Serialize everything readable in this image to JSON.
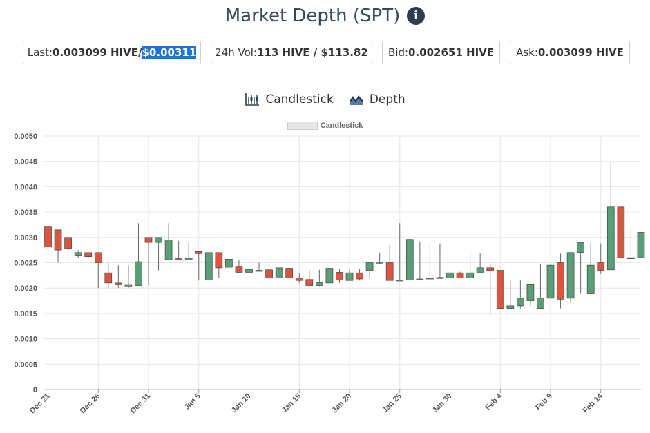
{
  "page": {
    "title": "Market Depth (SPT)",
    "info_icon": "info-icon"
  },
  "stats": {
    "last": {
      "label": "Last: ",
      "hive": "0.003099 HIVE",
      "sep": " / ",
      "usd": "$0.00311"
    },
    "vol": {
      "label": "24h Vol: ",
      "value": "113 HIVE / $113.82"
    },
    "bid": {
      "label": "Bid: ",
      "value": "0.002651 HIVE"
    },
    "ask": {
      "label": "Ask: ",
      "value": "0.003099 HIVE"
    }
  },
  "tabs": [
    {
      "label": "Candlestick",
      "icon": "candlestick-chart-icon"
    },
    {
      "label": "Depth",
      "icon": "depth-chart-icon"
    }
  ],
  "colors": {
    "up": "#5a9e78",
    "down": "#d9553f",
    "title": "#34495e",
    "grid": "#e6e6e6",
    "wick": "#666666"
  },
  "chart_data": {
    "type": "candlestick",
    "legend": "Candlestick",
    "grid": true,
    "ylim": [
      0,
      0.005
    ],
    "y_ticks": [
      "0",
      "0.0005",
      "0.0010",
      "0.0015",
      "0.0020",
      "0.0025",
      "0.0030",
      "0.0035",
      "0.0040",
      "0.0045",
      "0.0050"
    ],
    "x_tick_labels": [
      "Dec 21",
      "Dec 26",
      "Dec 31",
      "Jan 5",
      "Jan 10",
      "Jan 15",
      "Jan 20",
      "Jan 25",
      "Jan 30",
      "Feb 4",
      "Feb 9",
      "Feb 14"
    ],
    "candles": [
      {
        "date": "Dec 21",
        "open": 0.00322,
        "high": 0.00322,
        "low": 0.0028,
        "close": 0.00281
      },
      {
        "date": "Dec 22",
        "open": 0.00315,
        "high": 0.00315,
        "low": 0.0025,
        "close": 0.00275
      },
      {
        "date": "Dec 23",
        "open": 0.003,
        "high": 0.003,
        "low": 0.0026,
        "close": 0.00278
      },
      {
        "date": "Dec 24",
        "open": 0.00265,
        "high": 0.00275,
        "low": 0.0026,
        "close": 0.0027
      },
      {
        "date": "Dec 25",
        "open": 0.0027,
        "high": 0.0027,
        "low": 0.0026,
        "close": 0.00262
      },
      {
        "date": "Dec 26",
        "open": 0.0027,
        "high": 0.0027,
        "low": 0.002,
        "close": 0.0025
      },
      {
        "date": "Dec 27",
        "open": 0.0023,
        "high": 0.0025,
        "low": 0.002,
        "close": 0.0021
      },
      {
        "date": "Dec 28",
        "open": 0.0021,
        "high": 0.00245,
        "low": 0.002,
        "close": 0.00209
      },
      {
        "date": "Dec 29",
        "open": 0.00204,
        "high": 0.00245,
        "low": 0.002,
        "close": 0.00207
      },
      {
        "date": "Dec 30",
        "open": 0.00205,
        "high": 0.00328,
        "low": 0.00205,
        "close": 0.00252
      },
      {
        "date": "Dec 31",
        "open": 0.003,
        "high": 0.003,
        "low": 0.00205,
        "close": 0.0029
      },
      {
        "date": "Jan 1",
        "open": 0.0029,
        "high": 0.003,
        "low": 0.00235,
        "close": 0.003
      },
      {
        "date": "Jan 2",
        "open": 0.00256,
        "high": 0.00328,
        "low": 0.00256,
        "close": 0.00295
      },
      {
        "date": "Jan 3",
        "open": 0.00258,
        "high": 0.00293,
        "low": 0.00256,
        "close": 0.00256
      },
      {
        "date": "Jan 4",
        "open": 0.00258,
        "high": 0.0029,
        "low": 0.00256,
        "close": 0.00259
      },
      {
        "date": "Jan 5",
        "open": 0.00272,
        "high": 0.00272,
        "low": 0.00215,
        "close": 0.00268
      },
      {
        "date": "Jan 6",
        "open": 0.00216,
        "high": 0.0027,
        "low": 0.00216,
        "close": 0.0027
      },
      {
        "date": "Jan 7",
        "open": 0.0027,
        "high": 0.0027,
        "low": 0.0022,
        "close": 0.0024
      },
      {
        "date": "Jan 8",
        "open": 0.00241,
        "high": 0.00257,
        "low": 0.0024,
        "close": 0.00257
      },
      {
        "date": "Jan 9",
        "open": 0.00243,
        "high": 0.00256,
        "low": 0.0023,
        "close": 0.00231
      },
      {
        "date": "Jan 10",
        "open": 0.00231,
        "high": 0.0025,
        "low": 0.0023,
        "close": 0.00237
      },
      {
        "date": "Jan 11",
        "open": 0.00235,
        "high": 0.0025,
        "low": 0.00233,
        "close": 0.00235
      },
      {
        "date": "Jan 12",
        "open": 0.00236,
        "high": 0.00252,
        "low": 0.0022,
        "close": 0.0022
      },
      {
        "date": "Jan 13",
        "open": 0.0022,
        "high": 0.0024,
        "low": 0.0022,
        "close": 0.0024
      },
      {
        "date": "Jan 14",
        "open": 0.00239,
        "high": 0.0024,
        "low": 0.0022,
        "close": 0.0022
      },
      {
        "date": "Jan 15",
        "open": 0.0022,
        "high": 0.0023,
        "low": 0.0021,
        "close": 0.00215
      },
      {
        "date": "Jan 16",
        "open": 0.00217,
        "high": 0.00236,
        "low": 0.00205,
        "close": 0.00205
      },
      {
        "date": "Jan 17",
        "open": 0.00205,
        "high": 0.00236,
        "low": 0.00204,
        "close": 0.00211
      },
      {
        "date": "Jan 18",
        "open": 0.0021,
        "high": 0.00238,
        "low": 0.0021,
        "close": 0.00239
      },
      {
        "date": "Jan 19",
        "open": 0.00231,
        "high": 0.00238,
        "low": 0.0021,
        "close": 0.00216
      },
      {
        "date": "Jan 20",
        "open": 0.00215,
        "high": 0.00236,
        "low": 0.00215,
        "close": 0.0023
      },
      {
        "date": "Jan 21",
        "open": 0.0023,
        "high": 0.00238,
        "low": 0.00215,
        "close": 0.00218
      },
      {
        "date": "Jan 22",
        "open": 0.00235,
        "high": 0.0025,
        "low": 0.0022,
        "close": 0.0025
      },
      {
        "date": "Jan 23",
        "open": 0.00251,
        "high": 0.0027,
        "low": 0.00248,
        "close": 0.00251
      },
      {
        "date": "Jan 24",
        "open": 0.0025,
        "high": 0.00285,
        "low": 0.00215,
        "close": 0.00215
      },
      {
        "date": "Jan 25",
        "open": 0.00215,
        "high": 0.00328,
        "low": 0.00214,
        "close": 0.00216
      },
      {
        "date": "Jan 26",
        "open": 0.00216,
        "high": 0.00298,
        "low": 0.00216,
        "close": 0.00296
      },
      {
        "date": "Jan 27",
        "open": 0.00218,
        "high": 0.00292,
        "low": 0.00216,
        "close": 0.00216
      },
      {
        "date": "Jan 28",
        "open": 0.00219,
        "high": 0.00288,
        "low": 0.00218,
        "close": 0.0022
      },
      {
        "date": "Jan 29",
        "open": 0.0022,
        "high": 0.00288,
        "low": 0.00219,
        "close": 0.00221
      },
      {
        "date": "Jan 30",
        "open": 0.0022,
        "high": 0.00285,
        "low": 0.0022,
        "close": 0.0023
      },
      {
        "date": "Jan 31",
        "open": 0.0023,
        "high": 0.00232,
        "low": 0.0022,
        "close": 0.0022
      },
      {
        "date": "Feb 1",
        "open": 0.0022,
        "high": 0.00275,
        "low": 0.0022,
        "close": 0.0023
      },
      {
        "date": "Feb 2",
        "open": 0.0023,
        "high": 0.00268,
        "low": 0.0023,
        "close": 0.0024
      },
      {
        "date": "Feb 3",
        "open": 0.0024,
        "high": 0.00248,
        "low": 0.0015,
        "close": 0.00235
      },
      {
        "date": "Feb 4",
        "open": 0.00235,
        "high": 0.00235,
        "low": 0.0016,
        "close": 0.0016
      },
      {
        "date": "Feb 5",
        "open": 0.0016,
        "high": 0.00215,
        "low": 0.0016,
        "close": 0.00165
      },
      {
        "date": "Feb 6",
        "open": 0.00165,
        "high": 0.00215,
        "low": 0.0016,
        "close": 0.0018
      },
      {
        "date": "Feb 7",
        "open": 0.00175,
        "high": 0.00208,
        "low": 0.00165,
        "close": 0.00208
      },
      {
        "date": "Feb 8",
        "open": 0.0016,
        "high": 0.00248,
        "low": 0.0016,
        "close": 0.0018
      },
      {
        "date": "Feb 9",
        "open": 0.0018,
        "high": 0.00248,
        "low": 0.0018,
        "close": 0.00245
      },
      {
        "date": "Feb 10",
        "open": 0.0025,
        "high": 0.00268,
        "low": 0.0016,
        "close": 0.00178
      },
      {
        "date": "Feb 11",
        "open": 0.0018,
        "high": 0.00272,
        "low": 0.0017,
        "close": 0.0027
      },
      {
        "date": "Feb 12",
        "open": 0.0027,
        "high": 0.0029,
        "low": 0.0019,
        "close": 0.0029
      },
      {
        "date": "Feb 13",
        "open": 0.0019,
        "high": 0.0029,
        "low": 0.0019,
        "close": 0.00245
      },
      {
        "date": "Feb 14",
        "open": 0.0025,
        "high": 0.00288,
        "low": 0.00228,
        "close": 0.00235
      },
      {
        "date": "Feb 15",
        "open": 0.00236,
        "high": 0.0045,
        "low": 0.00236,
        "close": 0.0036
      },
      {
        "date": "Feb 16",
        "open": 0.0036,
        "high": 0.0036,
        "low": 0.0026,
        "close": 0.0026
      },
      {
        "date": "Feb 17",
        "open": 0.0026,
        "high": 0.0032,
        "low": 0.0026,
        "close": 0.0026
      },
      {
        "date": "Feb 18",
        "open": 0.0026,
        "high": 0.0031,
        "low": 0.0026,
        "close": 0.0031
      }
    ]
  }
}
